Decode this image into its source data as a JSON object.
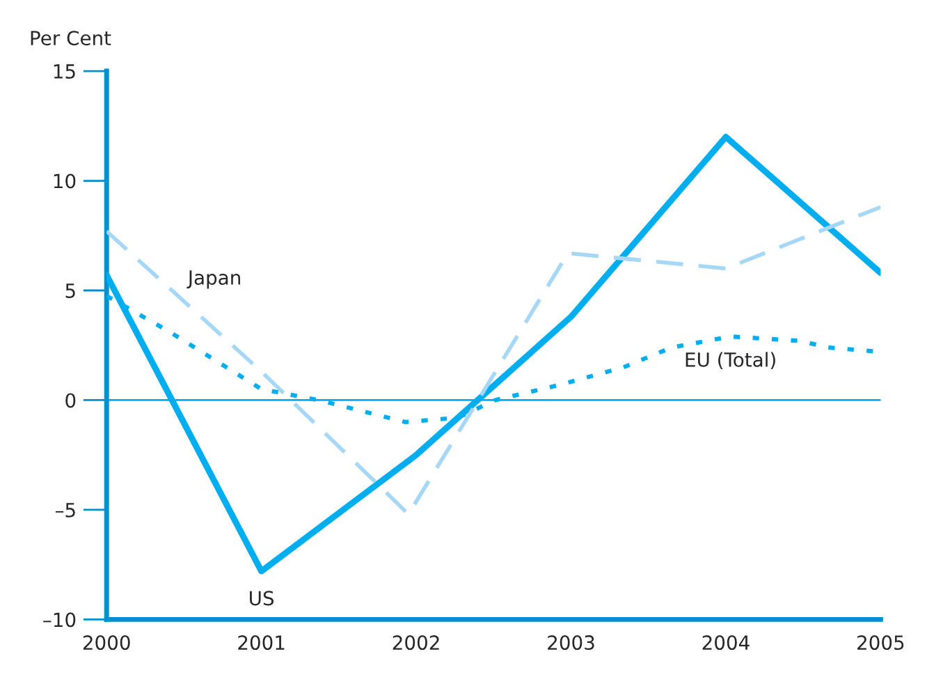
{
  "chart_data": {
    "type": "line",
    "ylabel": "Per Cent",
    "xlim": [
      2000,
      2005
    ],
    "xticks": [
      2000,
      2001,
      2002,
      2003,
      2004,
      2005
    ],
    "ylim": [
      -10,
      15
    ],
    "yticks": [
      {
        "value": -10,
        "label": "–10"
      },
      {
        "value": -5,
        "label": "–5"
      },
      0,
      5,
      10,
      15
    ],
    "grid": false,
    "legend": false,
    "marker": "none",
    "ref_lines": [
      {
        "axis": "y",
        "value": 0,
        "color": "#00aeef",
        "line_style": "solid"
      }
    ],
    "series": [
      {
        "name": "US",
        "color": "#00aeef",
        "line_style": "solid",
        "x": [
          2000,
          2001,
          2002,
          2003,
          2004,
          2005
        ],
        "values": [
          5.7,
          -7.8,
          -2.5,
          3.8,
          12.0,
          5.8
        ]
      },
      {
        "name": "Japan",
        "color": "#a6d8f5",
        "line_style": "dashed",
        "x": [
          2000,
          2001,
          2001.95,
          2002.98,
          2004,
          2005
        ],
        "values": [
          7.7,
          1.3,
          -5.2,
          6.7,
          6.0,
          8.8
        ]
      },
      {
        "name": "EU (Total)",
        "color": "#00aeef",
        "line_style": "dotted",
        "x": [
          2000,
          2000.41,
          2001,
          2001.37,
          2001.93,
          2002.27,
          2002.51,
          2002.93,
          2003.34,
          2003.65,
          2004.03,
          2004.48,
          2004.66,
          2005
        ],
        "values": [
          4.75,
          3.1,
          0.5,
          0.0,
          -1.0,
          -0.8,
          0.0,
          0.7,
          1.5,
          2.4,
          2.9,
          2.7,
          2.4,
          2.2
        ]
      }
    ]
  }
}
